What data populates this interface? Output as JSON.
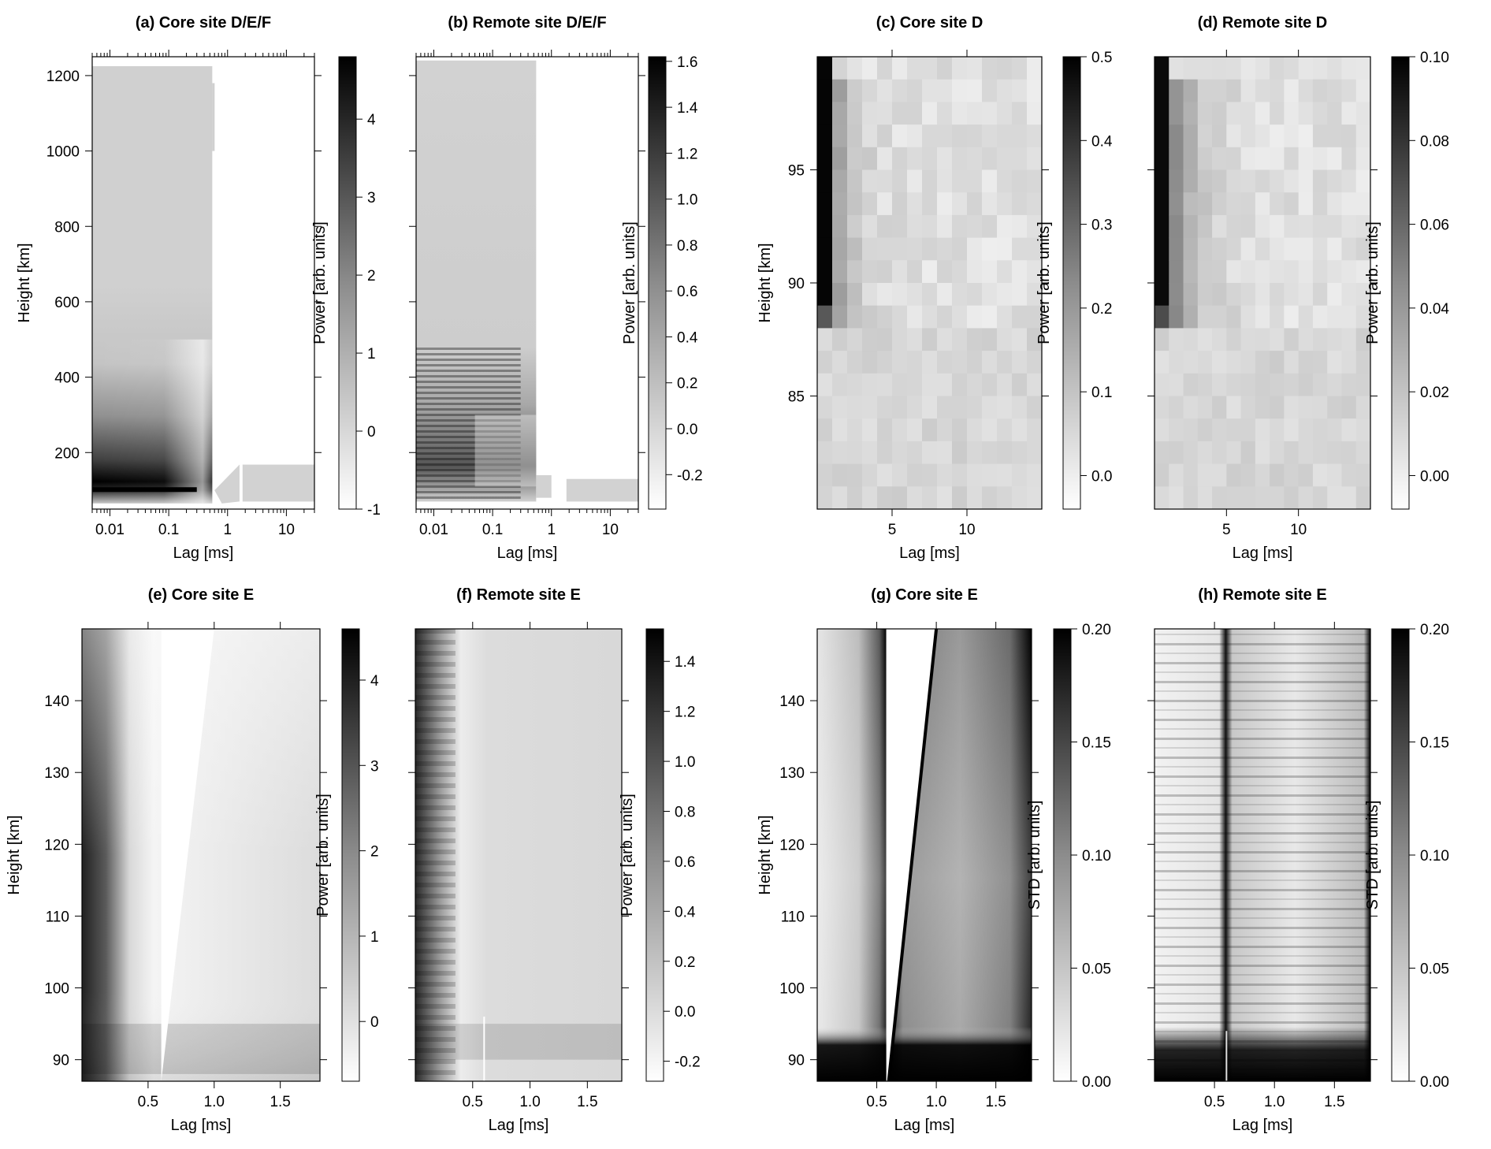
{
  "chart_data": [
    {
      "id": "a",
      "type": "heatmap",
      "title": "(a) Core site D/E/F",
      "xlabel": "Lag [ms]",
      "ylabel": "Height [km]",
      "xscale": "log",
      "xlim": [
        0.005,
        30
      ],
      "ylim": [
        50,
        1250
      ],
      "xticks": [
        {
          "v": 0.01,
          "label": "0.01"
        },
        {
          "v": 0.1,
          "label": "0.1"
        },
        {
          "v": 1,
          "label": "1"
        },
        {
          "v": 10,
          "label": "10"
        }
      ],
      "yticks": [
        {
          "v": 200,
          "label": "200"
        },
        {
          "v": 400,
          "label": "400"
        },
        {
          "v": 600,
          "label": "600"
        },
        {
          "v": 800,
          "label": "800"
        },
        {
          "v": 1000,
          "label": "1000"
        },
        {
          "v": 1200,
          "label": "1200"
        }
      ],
      "colorbar": {
        "label": "Power [arb. units]",
        "range": [
          -1,
          4.8
        ],
        "ticks": [
          {
            "v": -1,
            "label": "-1"
          },
          {
            "v": 0,
            "label": "0"
          },
          {
            "v": 1,
            "label": "1"
          },
          {
            "v": 2,
            "label": "2"
          },
          {
            "v": 3,
            "label": "3"
          },
          {
            "v": 4,
            "label": "4"
          }
        ]
      }
    },
    {
      "id": "b",
      "type": "heatmap",
      "title": "(b) Remote site D/E/F",
      "xlabel": "Lag [ms]",
      "ylabel": "",
      "xscale": "log",
      "xlim": [
        0.005,
        30
      ],
      "ylim": [
        50,
        1250
      ],
      "xticks": [
        {
          "v": 0.01,
          "label": "0.01"
        },
        {
          "v": 0.1,
          "label": "0.1"
        },
        {
          "v": 1,
          "label": "1"
        },
        {
          "v": 10,
          "label": "10"
        }
      ],
      "yticks": [
        {
          "v": 200,
          "label": ""
        },
        {
          "v": 400,
          "label": ""
        },
        {
          "v": 600,
          "label": ""
        },
        {
          "v": 800,
          "label": ""
        },
        {
          "v": 1000,
          "label": ""
        },
        {
          "v": 1200,
          "label": ""
        }
      ],
      "colorbar": {
        "label": "Power [arb. units]",
        "range": [
          -0.35,
          1.62
        ],
        "ticks": [
          {
            "v": -0.2,
            "label": "-0.2"
          },
          {
            "v": 0,
            "label": "0.0"
          },
          {
            "v": 0.2,
            "label": "0.2"
          },
          {
            "v": 0.4,
            "label": "0.4"
          },
          {
            "v": 0.6,
            "label": "0.6"
          },
          {
            "v": 0.8,
            "label": "0.8"
          },
          {
            "v": 1.0,
            "label": "1.0"
          },
          {
            "v": 1.2,
            "label": "1.2"
          },
          {
            "v": 1.4,
            "label": "1.4"
          },
          {
            "v": 1.6,
            "label": "1.6"
          }
        ]
      }
    },
    {
      "id": "c",
      "type": "heatmap",
      "title": "(c) Core site D",
      "xlabel": "Lag [ms]",
      "ylabel": "Height [km]",
      "xscale": "linear",
      "xlim": [
        0,
        15
      ],
      "ylim": [
        80,
        100
      ],
      "xticks": [
        {
          "v": 5,
          "label": "5"
        },
        {
          "v": 10,
          "label": "10"
        }
      ],
      "yticks": [
        {
          "v": 85,
          "label": "85"
        },
        {
          "v": 90,
          "label": "90"
        },
        {
          "v": 95,
          "label": "95"
        }
      ],
      "colorbar": {
        "label": "Power [arb. units]",
        "range": [
          -0.04,
          0.5
        ],
        "ticks": [
          {
            "v": 0,
            "label": "0.0"
          },
          {
            "v": 0.1,
            "label": "0.1"
          },
          {
            "v": 0.2,
            "label": "0.2"
          },
          {
            "v": 0.3,
            "label": "0.3"
          },
          {
            "v": 0.4,
            "label": "0.4"
          },
          {
            "v": 0.5,
            "label": "0.5"
          }
        ]
      }
    },
    {
      "id": "d",
      "type": "heatmap",
      "title": "(d) Remote site D",
      "xlabel": "Lag [ms]",
      "ylabel": "",
      "xscale": "linear",
      "xlim": [
        0,
        15
      ],
      "ylim": [
        80,
        100
      ],
      "xticks": [
        {
          "v": 5,
          "label": "5"
        },
        {
          "v": 10,
          "label": "10"
        }
      ],
      "yticks": [
        {
          "v": 85,
          "label": ""
        },
        {
          "v": 90,
          "label": ""
        },
        {
          "v": 95,
          "label": ""
        }
      ],
      "colorbar": {
        "label": "Power [arb. units]",
        "range": [
          -0.008,
          0.1
        ],
        "ticks": [
          {
            "v": 0,
            "label": "0.00"
          },
          {
            "v": 0.02,
            "label": "0.02"
          },
          {
            "v": 0.04,
            "label": "0.04"
          },
          {
            "v": 0.06,
            "label": "0.06"
          },
          {
            "v": 0.08,
            "label": "0.08"
          },
          {
            "v": 0.1,
            "label": "0.10"
          }
        ]
      }
    },
    {
      "id": "e",
      "type": "heatmap",
      "title": "(e) Core site E",
      "xlabel": "Lag [ms]",
      "ylabel": "Height [km]",
      "xscale": "linear",
      "xlim": [
        0,
        1.8
      ],
      "ylim": [
        87,
        150
      ],
      "xticks": [
        {
          "v": 0.5,
          "label": "0.5"
        },
        {
          "v": 1.0,
          "label": "1.0"
        },
        {
          "v": 1.5,
          "label": "1.5"
        }
      ],
      "yticks": [
        {
          "v": 90,
          "label": "90"
        },
        {
          "v": 100,
          "label": "100"
        },
        {
          "v": 110,
          "label": "110"
        },
        {
          "v": 120,
          "label": "120"
        },
        {
          "v": 130,
          "label": "130"
        },
        {
          "v": 140,
          "label": "140"
        }
      ],
      "colorbar": {
        "label": "Power [arb. units]",
        "range": [
          -0.7,
          4.6
        ],
        "ticks": [
          {
            "v": 0,
            "label": "0"
          },
          {
            "v": 1,
            "label": "1"
          },
          {
            "v": 2,
            "label": "2"
          },
          {
            "v": 3,
            "label": "3"
          },
          {
            "v": 4,
            "label": "4"
          }
        ]
      }
    },
    {
      "id": "f",
      "type": "heatmap",
      "title": "(f) Remote site E",
      "xlabel": "Lag [ms]",
      "ylabel": "",
      "xscale": "linear",
      "xlim": [
        0,
        1.8
      ],
      "ylim": [
        87,
        150
      ],
      "xticks": [
        {
          "v": 0.5,
          "label": "0.5"
        },
        {
          "v": 1.0,
          "label": "1.0"
        },
        {
          "v": 1.5,
          "label": "1.5"
        }
      ],
      "yticks": [
        {
          "v": 90,
          "label": ""
        },
        {
          "v": 100,
          "label": ""
        },
        {
          "v": 110,
          "label": ""
        },
        {
          "v": 120,
          "label": ""
        },
        {
          "v": 130,
          "label": ""
        },
        {
          "v": 140,
          "label": ""
        }
      ],
      "colorbar": {
        "label": "Power [arb. units]",
        "range": [
          -0.28,
          1.53
        ],
        "ticks": [
          {
            "v": -0.2,
            "label": "-0.2"
          },
          {
            "v": 0,
            "label": "0.0"
          },
          {
            "v": 0.2,
            "label": "0.2"
          },
          {
            "v": 0.4,
            "label": "0.4"
          },
          {
            "v": 0.6,
            "label": "0.6"
          },
          {
            "v": 0.8,
            "label": "0.8"
          },
          {
            "v": 1.0,
            "label": "1.0"
          },
          {
            "v": 1.2,
            "label": "1.2"
          },
          {
            "v": 1.4,
            "label": "1.4"
          }
        ]
      }
    },
    {
      "id": "g",
      "type": "heatmap",
      "title": "(g) Core site E",
      "xlabel": "Lag [ms]",
      "ylabel": "Height [km]",
      "xscale": "linear",
      "xlim": [
        0,
        1.8
      ],
      "ylim": [
        87,
        150
      ],
      "xticks": [
        {
          "v": 0.5,
          "label": "0.5"
        },
        {
          "v": 1.0,
          "label": "1.0"
        },
        {
          "v": 1.5,
          "label": "1.5"
        }
      ],
      "yticks": [
        {
          "v": 90,
          "label": "90"
        },
        {
          "v": 100,
          "label": "100"
        },
        {
          "v": 110,
          "label": "110"
        },
        {
          "v": 120,
          "label": "120"
        },
        {
          "v": 130,
          "label": "130"
        },
        {
          "v": 140,
          "label": "140"
        }
      ],
      "colorbar": {
        "label": "STD [arb. units]",
        "range": [
          0,
          0.2
        ],
        "ticks": [
          {
            "v": 0,
            "label": "0.00"
          },
          {
            "v": 0.05,
            "label": "0.05"
          },
          {
            "v": 0.1,
            "label": "0.10"
          },
          {
            "v": 0.15,
            "label": "0.15"
          },
          {
            "v": 0.2,
            "label": "0.20"
          }
        ]
      }
    },
    {
      "id": "h",
      "type": "heatmap",
      "title": "(h) Remote site E",
      "xlabel": "Lag [ms]",
      "ylabel": "",
      "xscale": "linear",
      "xlim": [
        0,
        1.8
      ],
      "ylim": [
        87,
        150
      ],
      "xticks": [
        {
          "v": 0.5,
          "label": "0.5"
        },
        {
          "v": 1.0,
          "label": "1.0"
        },
        {
          "v": 1.5,
          "label": "1.5"
        }
      ],
      "yticks": [
        {
          "v": 90,
          "label": ""
        },
        {
          "v": 100,
          "label": ""
        },
        {
          "v": 110,
          "label": ""
        },
        {
          "v": 120,
          "label": ""
        },
        {
          "v": 130,
          "label": ""
        },
        {
          "v": 140,
          "label": ""
        }
      ],
      "colorbar": {
        "label": "STD [arb. units]",
        "range": [
          0,
          0.2
        ],
        "ticks": [
          {
            "v": 0,
            "label": "0.00"
          },
          {
            "v": 0.05,
            "label": "0.05"
          },
          {
            "v": 0.1,
            "label": "0.10"
          },
          {
            "v": 0.15,
            "label": "0.15"
          },
          {
            "v": 0.2,
            "label": "0.20"
          }
        ]
      }
    }
  ]
}
